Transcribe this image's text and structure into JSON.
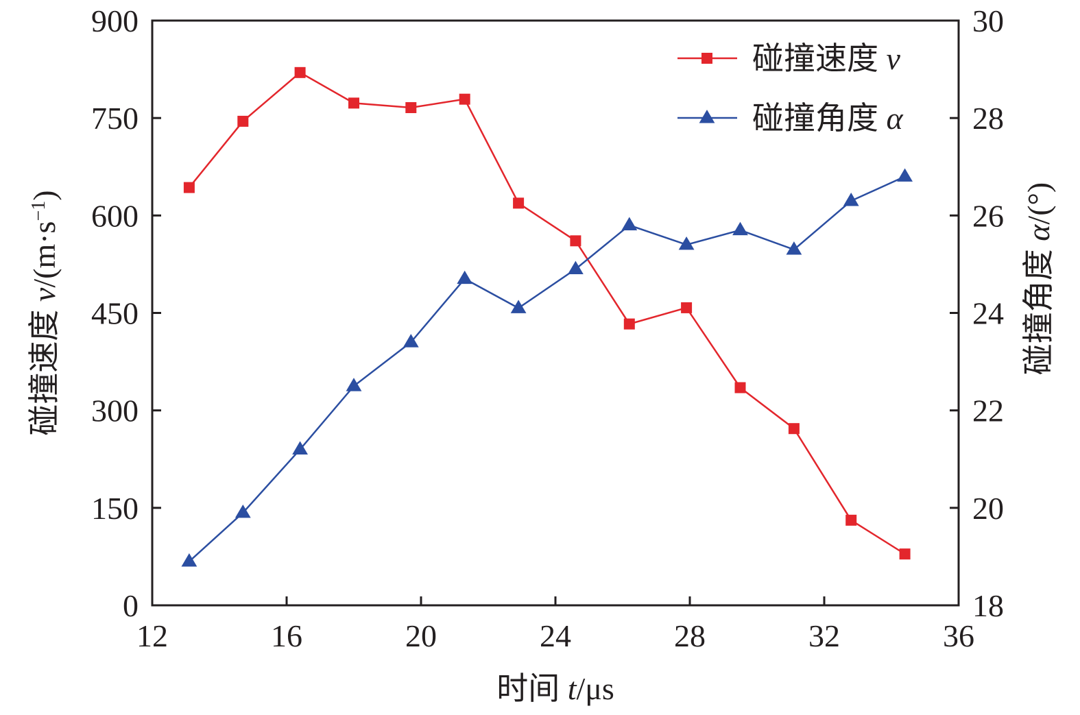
{
  "chart_data": {
    "type": "line",
    "x": [
      13.1,
      14.7,
      16.4,
      18.0,
      19.7,
      21.3,
      22.9,
      24.6,
      26.2,
      27.9,
      29.5,
      31.1,
      32.8,
      34.4
    ],
    "series": [
      {
        "name": "碰撞速度 v",
        "axis": "left",
        "marker": "square",
        "color": "#e3262c",
        "values": [
          643,
          745,
          820,
          773,
          766,
          779,
          619,
          561,
          433,
          458,
          335,
          272,
          131,
          79
        ]
      },
      {
        "name": "碰撞角度 α",
        "axis": "right",
        "marker": "triangle",
        "color": "#2b4ea1",
        "values": [
          18.9,
          19.9,
          21.2,
          22.5,
          23.4,
          24.7,
          24.1,
          24.9,
          25.8,
          25.4,
          25.7,
          25.3,
          26.3,
          26.8
        ]
      }
    ],
    "xlabel": {
      "prefix": "时间 ",
      "var": "t",
      "suffix": "/μs"
    },
    "ylabel_left": {
      "prefix": "碰撞速度 ",
      "var": "v",
      "suffix": "/(m·s",
      "sup": "−1",
      "end": ")"
    },
    "ylabel_right": {
      "prefix": "碰撞角度 ",
      "var": "α",
      "suffix": "/(°)"
    },
    "xlim": [
      12,
      36
    ],
    "ylim_left": [
      0,
      900
    ],
    "ylim_right": [
      18,
      30
    ],
    "xticks": [
      12,
      16,
      20,
      24,
      28,
      32,
      36
    ],
    "yticks_left": [
      0,
      150,
      300,
      450,
      600,
      750,
      900
    ],
    "yticks_right": [
      18,
      20,
      22,
      24,
      26,
      28,
      30
    ],
    "legend": {
      "placement": "top-right",
      "items": [
        {
          "prefix": "碰撞速度 ",
          "var": "v"
        },
        {
          "prefix": "碰撞角度 ",
          "var": "α"
        }
      ]
    },
    "grid": false
  }
}
